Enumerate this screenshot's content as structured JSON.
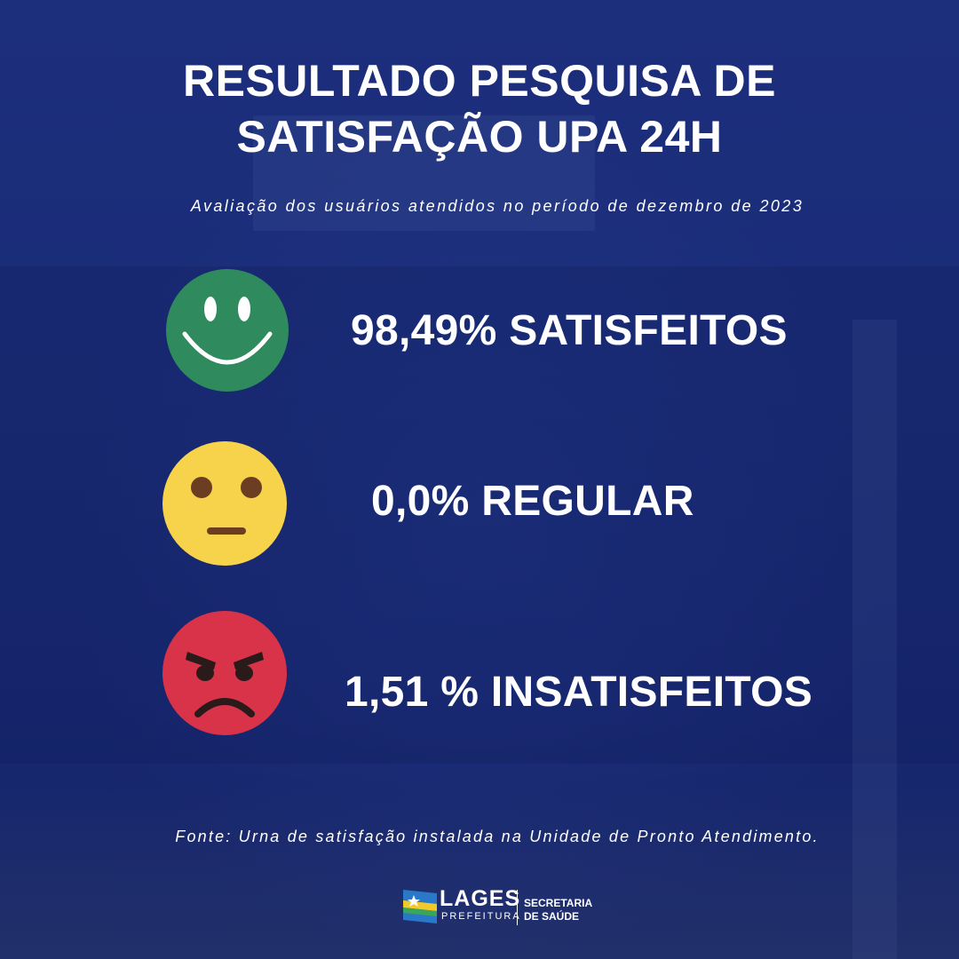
{
  "title_line1": "RESULTADO PESQUISA DE",
  "title_line2": "SATISFAÇÃO UPA 24H",
  "subtitle": "Avaliação dos usuários atendidos no período de dezembro de 2023",
  "results": [
    {
      "label": "98,49% SATISFEITOS",
      "value_percent": 98.49,
      "icon": "smiling-face-icon",
      "color": "#2f8a5d"
    },
    {
      "label": "0,0% REGULAR",
      "value_percent": 0.0,
      "icon": "neutral-face-icon",
      "color": "#f6d34b"
    },
    {
      "label": "1,51 % INSATISFEITOS",
      "value_percent": 1.51,
      "icon": "angry-face-icon",
      "color": "#d9334a"
    }
  ],
  "footer": "Fonte: Urna de satisfação instalada na Unidade de Pronto Atendimento.",
  "logo": {
    "name": "LAGES",
    "sub": "PREFEITURA",
    "secretaria_line1": "SECRETARIA",
    "secretaria_line2": "DE SAÚDE"
  },
  "colors": {
    "background": "#1b2d7a",
    "text": "#ffffff"
  }
}
